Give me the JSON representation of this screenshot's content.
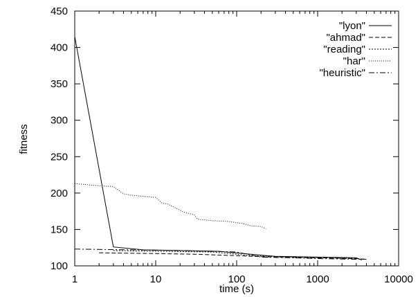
{
  "chart_data": {
    "type": "line",
    "xlabel": "time (s)",
    "ylabel": "fitness",
    "xscale": "log",
    "xlim": [
      1,
      10000
    ],
    "ylim": [
      100,
      450
    ],
    "grid": false,
    "legend_position": "top-right",
    "x_ticks": [
      {
        "value": 1,
        "label": "1"
      },
      {
        "value": 10,
        "label": "10"
      },
      {
        "value": 100,
        "label": "100"
      },
      {
        "value": 1000,
        "label": "1000"
      },
      {
        "value": 10000,
        "label": "10000"
      }
    ],
    "y_ticks": [
      {
        "value": 100,
        "label": "100"
      },
      {
        "value": 150,
        "label": "150"
      },
      {
        "value": 200,
        "label": "200"
      },
      {
        "value": 250,
        "label": "250"
      },
      {
        "value": 300,
        "label": "300"
      },
      {
        "value": 350,
        "label": "350"
      },
      {
        "value": 400,
        "label": "400"
      },
      {
        "value": 450,
        "label": "450"
      }
    ],
    "series": [
      {
        "name": "\"lyon\"",
        "dash": "",
        "points": [
          [
            1,
            415
          ],
          [
            3,
            126
          ],
          [
            7,
            122
          ],
          [
            20,
            121
          ],
          [
            60,
            120
          ],
          [
            150,
            116
          ],
          [
            300,
            113
          ],
          [
            1000,
            112
          ],
          [
            3000,
            111
          ],
          [
            3500,
            108
          ]
        ]
      },
      {
        "name": "\"ahmad\"",
        "dash": "6,3",
        "points": [
          [
            2,
            118
          ],
          [
            8,
            117
          ],
          [
            30,
            116
          ],
          [
            100,
            114
          ],
          [
            300,
            112
          ],
          [
            1000,
            111
          ],
          [
            3000,
            110
          ],
          [
            4000,
            109
          ]
        ]
      },
      {
        "name": "\"reading\"",
        "dash": "2,2",
        "points": [
          [
            3,
            121
          ],
          [
            10,
            120
          ],
          [
            50,
            119
          ],
          [
            150,
            114
          ],
          [
            500,
            112
          ],
          [
            1500,
            111
          ],
          [
            3000,
            110
          ]
        ]
      },
      {
        "name": "\"har\"",
        "dash": "1,2",
        "points": [
          [
            1,
            213
          ],
          [
            2,
            210
          ],
          [
            3,
            209
          ],
          [
            4,
            199
          ],
          [
            5,
            197
          ],
          [
            10,
            194
          ],
          [
            12,
            186
          ],
          [
            14,
            185
          ],
          [
            18,
            179
          ],
          [
            22,
            174
          ],
          [
            30,
            170
          ],
          [
            33,
            164
          ],
          [
            50,
            162
          ],
          [
            80,
            161
          ],
          [
            120,
            158
          ],
          [
            150,
            155
          ],
          [
            200,
            154
          ],
          [
            230,
            151
          ]
        ]
      },
      {
        "name": "\"heuristic\"",
        "dash": "8,3,2,3",
        "points": [
          [
            1,
            123
          ],
          [
            5,
            122
          ],
          [
            20,
            121
          ],
          [
            100,
            119
          ],
          [
            200,
            112
          ],
          [
            500,
            111
          ],
          [
            1000,
            110
          ],
          [
            3000,
            109
          ],
          [
            4000,
            109
          ]
        ]
      }
    ]
  }
}
